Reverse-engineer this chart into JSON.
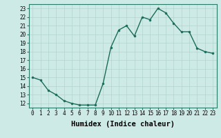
{
  "x": [
    0,
    1,
    2,
    3,
    4,
    5,
    6,
    7,
    8,
    9,
    10,
    11,
    12,
    13,
    14,
    15,
    16,
    17,
    18,
    19,
    20,
    21,
    22,
    23
  ],
  "y": [
    15.0,
    14.7,
    13.5,
    13.0,
    12.3,
    12.0,
    11.8,
    11.8,
    11.8,
    14.3,
    18.5,
    20.5,
    21.0,
    19.8,
    22.0,
    21.7,
    23.0,
    22.5,
    21.3,
    20.3,
    20.3,
    18.4,
    18.0,
    17.8
  ],
  "line_color": "#1a6b5a",
  "marker": "o",
  "marker_size": 2.0,
  "line_width": 1.0,
  "bg_color": "#ceeae6",
  "grid_color": "#b0d4cf",
  "xlabel": "Humidex (Indice chaleur)",
  "xlim": [
    -0.5,
    23.5
  ],
  "ylim": [
    11.5,
    23.5
  ],
  "yticks": [
    12,
    13,
    14,
    15,
    16,
    17,
    18,
    19,
    20,
    21,
    22,
    23
  ],
  "xticks": [
    0,
    1,
    2,
    3,
    4,
    5,
    6,
    7,
    8,
    9,
    10,
    11,
    12,
    13,
    14,
    15,
    16,
    17,
    18,
    19,
    20,
    21,
    22,
    23
  ],
  "tick_label_size": 5.5,
  "xlabel_size": 7.5
}
